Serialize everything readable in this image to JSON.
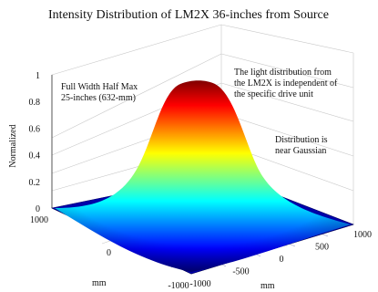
{
  "chart_data": {
    "type": "surface",
    "title": "Intensity Distribution of LM2X 36-inches from Source",
    "xlabel": "mm",
    "ylabel": "mm",
    "zlabel": "Normalized",
    "x_ticks": [
      "1000",
      "0",
      "-1000"
    ],
    "y_ticks": [
      "-1000",
      "-500",
      "0",
      "500",
      "1000"
    ],
    "z_ticks": [
      "0",
      "0.2",
      "0.4",
      "0.6",
      "0.8",
      "1"
    ],
    "xlim": [
      -1000,
      1000
    ],
    "ylim": [
      -1000,
      1000
    ],
    "zlim": [
      0,
      1
    ],
    "grid": true,
    "colormap": "jet",
    "peak": 1.0,
    "center": [
      0,
      0
    ],
    "fwhm_mm": 632,
    "annotations": [
      {
        "name": "fwhm",
        "lines": [
          "Full Width Half Max",
          "25-inches (632-mm)"
        ]
      },
      {
        "name": "independence",
        "lines": [
          "The light distribution from",
          "the LM2X is independent of",
          "the specific drive unit"
        ]
      },
      {
        "name": "gaussian",
        "lines": [
          "Distribution is",
          "near Gaussian"
        ]
      }
    ]
  }
}
